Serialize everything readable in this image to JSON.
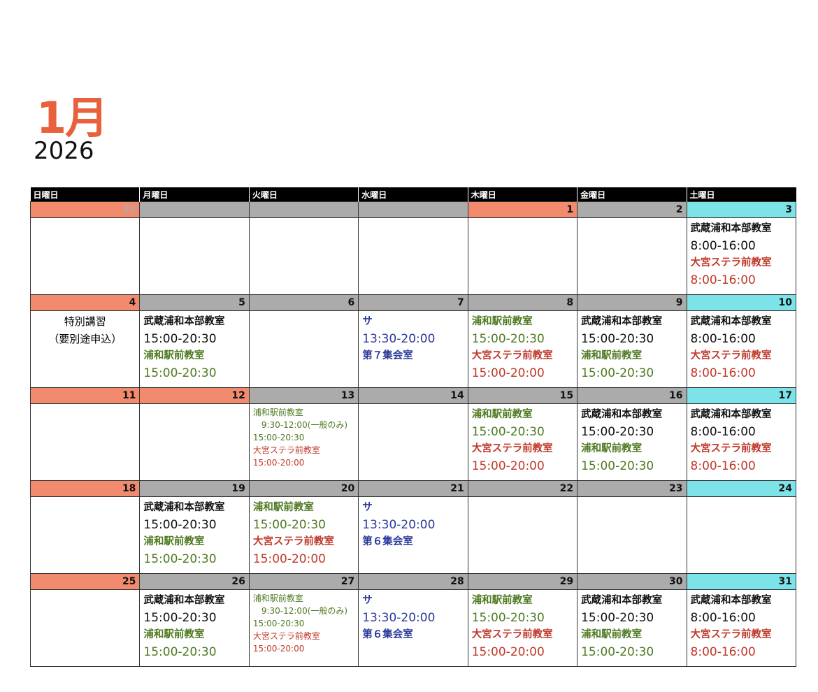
{
  "header": {
    "month": "1月",
    "year": "2026"
  },
  "colors": {
    "black": "#111111",
    "green": "#4f7a22",
    "red": "#c0392b",
    "blue": "#2a3a9a",
    "sunday": "#f28b6e",
    "weekday": "#ababab",
    "saturday": "#7ce4e8",
    "accent": "#e8603c"
  },
  "weekdays": [
    "日曜日",
    "月曜日",
    "火曜日",
    "水曜日",
    "木曜日",
    "金曜日",
    "土曜日"
  ],
  "weeks": [
    [
      {
        "date": "28",
        "faint": true,
        "lines": []
      },
      {
        "date": "",
        "lines": []
      },
      {
        "date": "",
        "lines": []
      },
      {
        "date": "",
        "lines": []
      },
      {
        "date": "1",
        "sun": true,
        "lines": []
      },
      {
        "date": "2",
        "lines": []
      },
      {
        "date": "3",
        "lines": [
          {
            "t": "武蔵浦和本部教室",
            "c": "black",
            "k": "room"
          },
          {
            "t": "8:00-16:00",
            "c": "black",
            "k": "time"
          },
          {
            "t": "大宮ステラ前教室",
            "c": "red",
            "k": "room"
          },
          {
            "t": "8:00-16:00",
            "c": "red",
            "k": "time"
          }
        ]
      }
    ],
    [
      {
        "date": "4",
        "special": [
          "特別講習",
          "（要別途申込）"
        ],
        "lines": []
      },
      {
        "date": "5",
        "lines": [
          {
            "t": "武蔵浦和本部教室",
            "c": "black",
            "k": "room"
          },
          {
            "t": "15:00-20:30",
            "c": "black",
            "k": "time"
          },
          {
            "t": "浦和駅前教室",
            "c": "green",
            "k": "room"
          },
          {
            "t": "15:00-20:30",
            "c": "green",
            "k": "time"
          }
        ]
      },
      {
        "date": "6",
        "lines": []
      },
      {
        "date": "7",
        "lines": [
          {
            "t": "サ",
            "c": "blue",
            "k": "room"
          },
          {
            "t": "13:30-20:00",
            "c": "blue",
            "k": "time"
          },
          {
            "t": "第７集会室",
            "c": "blue",
            "k": "room"
          }
        ]
      },
      {
        "date": "8",
        "lines": [
          {
            "t": "浦和駅前教室",
            "c": "green",
            "k": "room"
          },
          {
            "t": "15:00-20:30",
            "c": "green",
            "k": "time"
          },
          {
            "t": "大宮ステラ前教室",
            "c": "red",
            "k": "room"
          },
          {
            "t": "15:00-20:00",
            "c": "red",
            "k": "time"
          }
        ]
      },
      {
        "date": "9",
        "lines": [
          {
            "t": "武蔵浦和本部教室",
            "c": "black",
            "k": "room"
          },
          {
            "t": "15:00-20:30",
            "c": "black",
            "k": "time"
          },
          {
            "t": "浦和駅前教室",
            "c": "green",
            "k": "room"
          },
          {
            "t": "15:00-20:30",
            "c": "green",
            "k": "time"
          }
        ]
      },
      {
        "date": "10",
        "lines": [
          {
            "t": "武蔵浦和本部教室",
            "c": "black",
            "k": "room"
          },
          {
            "t": "8:00-16:00",
            "c": "black",
            "k": "time"
          },
          {
            "t": "大宮ステラ前教室",
            "c": "red",
            "k": "room"
          },
          {
            "t": "8:00-16:00",
            "c": "red",
            "k": "time"
          }
        ]
      }
    ],
    [
      {
        "date": "11",
        "lines": []
      },
      {
        "date": "12",
        "sun": true,
        "lines": []
      },
      {
        "date": "13",
        "small": true,
        "lines": [
          {
            "t": "浦和駅前教室",
            "c": "green"
          },
          {
            "t": "　9:30-12:00(一般のみ)",
            "c": "green"
          },
          {
            "t": "15:00-20:30",
            "c": "green"
          },
          {
            "t": "大宮ステラ前教室",
            "c": "red"
          },
          {
            "t": "15:00-20:00",
            "c": "red"
          }
        ]
      },
      {
        "date": "14",
        "lines": []
      },
      {
        "date": "15",
        "lines": [
          {
            "t": "浦和駅前教室",
            "c": "green",
            "k": "room"
          },
          {
            "t": "15:00-20:30",
            "c": "green",
            "k": "time"
          },
          {
            "t": "大宮ステラ前教室",
            "c": "red",
            "k": "room"
          },
          {
            "t": "15:00-20:00",
            "c": "red",
            "k": "time"
          }
        ]
      },
      {
        "date": "16",
        "lines": [
          {
            "t": "武蔵浦和本部教室",
            "c": "black",
            "k": "room"
          },
          {
            "t": "15:00-20:30",
            "c": "black",
            "k": "time"
          },
          {
            "t": "浦和駅前教室",
            "c": "green",
            "k": "room"
          },
          {
            "t": "15:00-20:30",
            "c": "green",
            "k": "time"
          }
        ]
      },
      {
        "date": "17",
        "lines": [
          {
            "t": "武蔵浦和本部教室",
            "c": "black",
            "k": "room"
          },
          {
            "t": "8:00-16:00",
            "c": "black",
            "k": "time"
          },
          {
            "t": "大宮ステラ前教室",
            "c": "red",
            "k": "room"
          },
          {
            "t": "8:00-16:00",
            "c": "red",
            "k": "time"
          }
        ]
      }
    ],
    [
      {
        "date": "18",
        "lines": []
      },
      {
        "date": "19",
        "lines": [
          {
            "t": "武蔵浦和本部教室",
            "c": "black",
            "k": "room"
          },
          {
            "t": "15:00-20:30",
            "c": "black",
            "k": "time"
          },
          {
            "t": "浦和駅前教室",
            "c": "green",
            "k": "room"
          },
          {
            "t": "15:00-20:30",
            "c": "green",
            "k": "time"
          }
        ]
      },
      {
        "date": "20",
        "lines": [
          {
            "t": "浦和駅前教室",
            "c": "green",
            "k": "room"
          },
          {
            "t": "15:00-20:30",
            "c": "green",
            "k": "time"
          },
          {
            "t": "大宮ステラ前教室",
            "c": "red",
            "k": "room"
          },
          {
            "t": "15:00-20:00",
            "c": "red",
            "k": "time"
          }
        ]
      },
      {
        "date": "21",
        "lines": [
          {
            "t": "サ",
            "c": "blue",
            "k": "room"
          },
          {
            "t": "13:30-20:00",
            "c": "blue",
            "k": "time"
          },
          {
            "t": "第６集会室",
            "c": "blue",
            "k": "room"
          }
        ]
      },
      {
        "date": "22",
        "lines": []
      },
      {
        "date": "23",
        "lines": []
      },
      {
        "date": "24",
        "lines": []
      }
    ],
    [
      {
        "date": "25",
        "lines": []
      },
      {
        "date": "26",
        "lines": [
          {
            "t": "武蔵浦和本部教室",
            "c": "black",
            "k": "room"
          },
          {
            "t": "15:00-20:30",
            "c": "black",
            "k": "time"
          },
          {
            "t": "浦和駅前教室",
            "c": "green",
            "k": "room"
          },
          {
            "t": "15:00-20:30",
            "c": "green",
            "k": "time"
          }
        ]
      },
      {
        "date": "27",
        "small": true,
        "lines": [
          {
            "t": "浦和駅前教室",
            "c": "green"
          },
          {
            "t": "　9:30-12:00(一般のみ)",
            "c": "green"
          },
          {
            "t": "15:00-20:30",
            "c": "green"
          },
          {
            "t": "大宮ステラ前教室",
            "c": "red"
          },
          {
            "t": "15:00-20:00",
            "c": "red"
          }
        ]
      },
      {
        "date": "28",
        "lines": [
          {
            "t": "サ",
            "c": "blue",
            "k": "room"
          },
          {
            "t": "13:30-20:00",
            "c": "blue",
            "k": "time"
          },
          {
            "t": "第６集会室",
            "c": "blue",
            "k": "room"
          }
        ]
      },
      {
        "date": "29",
        "lines": [
          {
            "t": "浦和駅前教室",
            "c": "green",
            "k": "room"
          },
          {
            "t": "15:00-20:30",
            "c": "green",
            "k": "time"
          },
          {
            "t": "大宮ステラ前教室",
            "c": "red",
            "k": "room"
          },
          {
            "t": "15:00-20:00",
            "c": "red",
            "k": "time"
          }
        ]
      },
      {
        "date": "30",
        "lines": [
          {
            "t": "武蔵浦和本部教室",
            "c": "black",
            "k": "room"
          },
          {
            "t": "15:00-20:30",
            "c": "black",
            "k": "time"
          },
          {
            "t": "浦和駅前教室",
            "c": "green",
            "k": "room"
          },
          {
            "t": "15:00-20:30",
            "c": "green",
            "k": "time"
          }
        ]
      },
      {
        "date": "31",
        "lines": [
          {
            "t": "武蔵浦和本部教室",
            "c": "black",
            "k": "room"
          },
          {
            "t": "8:00-16:00",
            "c": "black",
            "k": "time"
          },
          {
            "t": "大宮ステラ前教室",
            "c": "red",
            "k": "room"
          },
          {
            "t": "8:00-16:00",
            "c": "red",
            "k": "time"
          }
        ]
      }
    ]
  ]
}
